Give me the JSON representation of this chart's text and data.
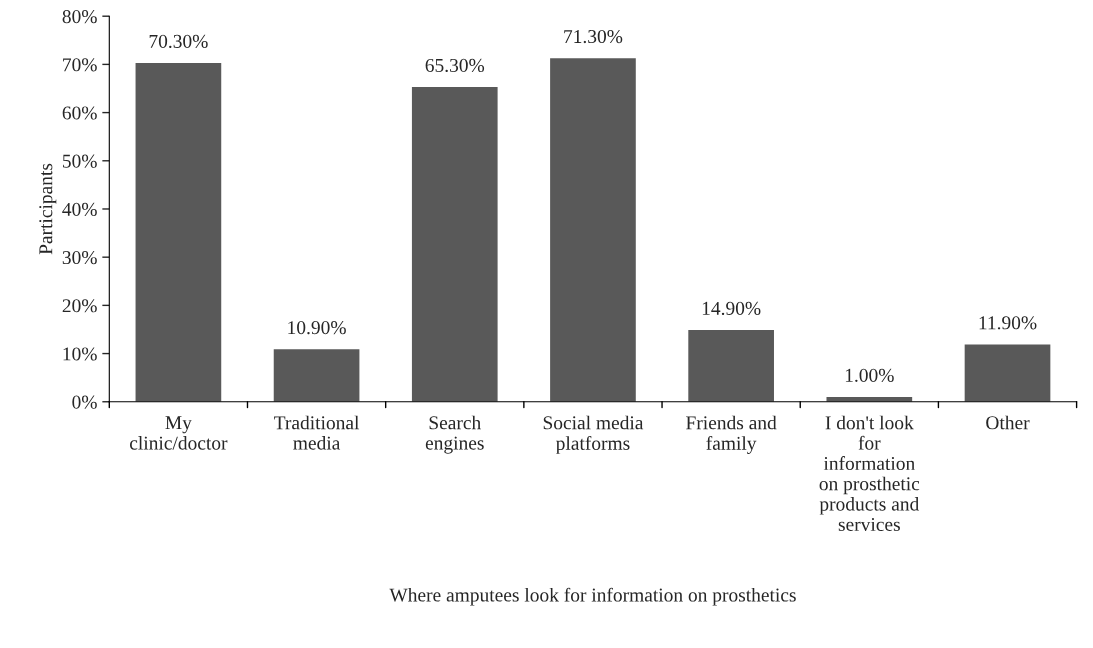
{
  "chart_data": {
    "type": "bar",
    "xlabel": "Where amputees look for information on prosthetics",
    "ylabel": "Participants",
    "categories": [
      "My\nclinic/doctor",
      "Traditional\nmedia",
      "Search\nengines",
      "Social media\nplatforms",
      "Friends and\nfamily",
      "I don't look\nfor\ninformation\non prosthetic\nproducts and\nservices",
      "Other"
    ],
    "values": [
      70.3,
      10.9,
      65.3,
      71.3,
      14.9,
      1.0,
      11.9
    ],
    "value_labels": [
      "70.30%",
      "10.90%",
      "65.30%",
      "71.30%",
      "14.90%",
      "1.00%",
      "11.90%"
    ],
    "color": "#595959",
    "ylim": [
      0,
      80
    ],
    "yticks": [
      {
        "value": 0,
        "label": "0%"
      },
      {
        "value": 10,
        "label": "10%"
      },
      {
        "value": 20,
        "label": "20%"
      },
      {
        "value": 30,
        "label": "30%"
      },
      {
        "value": 40,
        "label": "40%"
      },
      {
        "value": 50,
        "label": "50%"
      },
      {
        "value": 60,
        "label": "60%"
      },
      {
        "value": 70,
        "label": "70%"
      },
      {
        "value": 80,
        "label": "80%"
      }
    ],
    "grid": false,
    "legend": false
  }
}
